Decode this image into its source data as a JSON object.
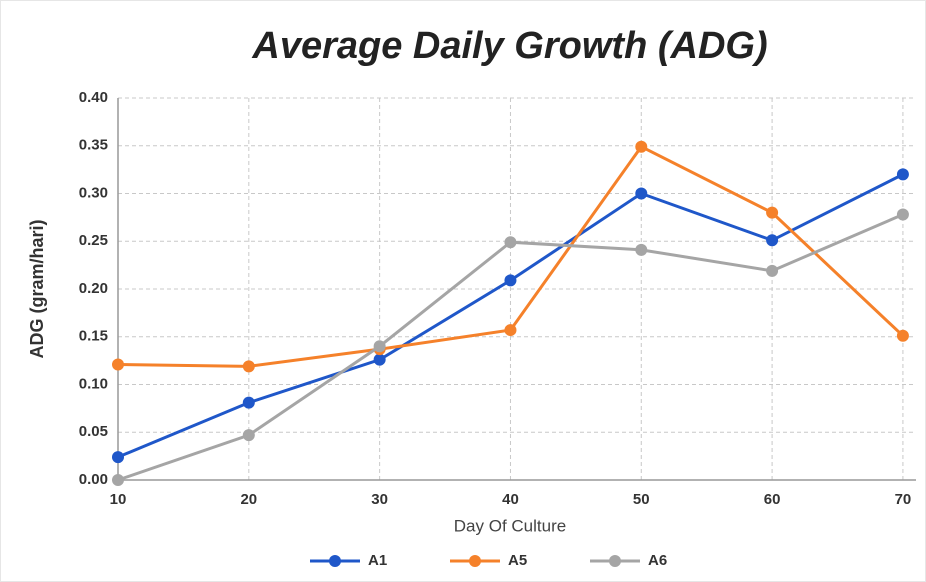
{
  "chart_data": {
    "type": "line",
    "title": "Average Daily Growth (ADG)",
    "x_label": "Day Of Culture",
    "y_label": "ADG (gram/hari)",
    "x": [
      10,
      20,
      30,
      40,
      50,
      60,
      70
    ],
    "series": [
      {
        "name": "A1",
        "color": "#1f57c9",
        "values": [
          0.024,
          0.081,
          0.126,
          0.209,
          0.3,
          0.251,
          0.32
        ]
      },
      {
        "name": "A5",
        "color": "#f5812a",
        "values": [
          0.121,
          0.119,
          0.137,
          0.157,
          0.349,
          0.28,
          0.151
        ]
      },
      {
        "name": "A6",
        "color": "#a5a5a5",
        "values": [
          0,
          0.047,
          0.14,
          0.249,
          0.241,
          0.219,
          0.278
        ]
      }
    ],
    "xlim": [
      10,
      71
    ],
    "xticks": [
      10,
      20,
      30,
      40,
      50,
      60,
      70
    ],
    "ylim": [
      0,
      0.4
    ],
    "yticks": [
      {
        "value": 0,
        "label": "0.00"
      },
      {
        "value": 0.05,
        "label": "0.05"
      },
      {
        "value": 0.1,
        "label": "0.10"
      },
      {
        "value": 0.15,
        "label": "0.15"
      },
      {
        "value": 0.2,
        "label": "0.20"
      },
      {
        "value": 0.25,
        "label": "0.25"
      },
      {
        "value": 0.3,
        "label": "0.30"
      },
      {
        "value": 0.35,
        "label": "0.35"
      },
      {
        "value": 0.4,
        "label": "0.40"
      }
    ],
    "grid": true,
    "legend": "bottom"
  }
}
